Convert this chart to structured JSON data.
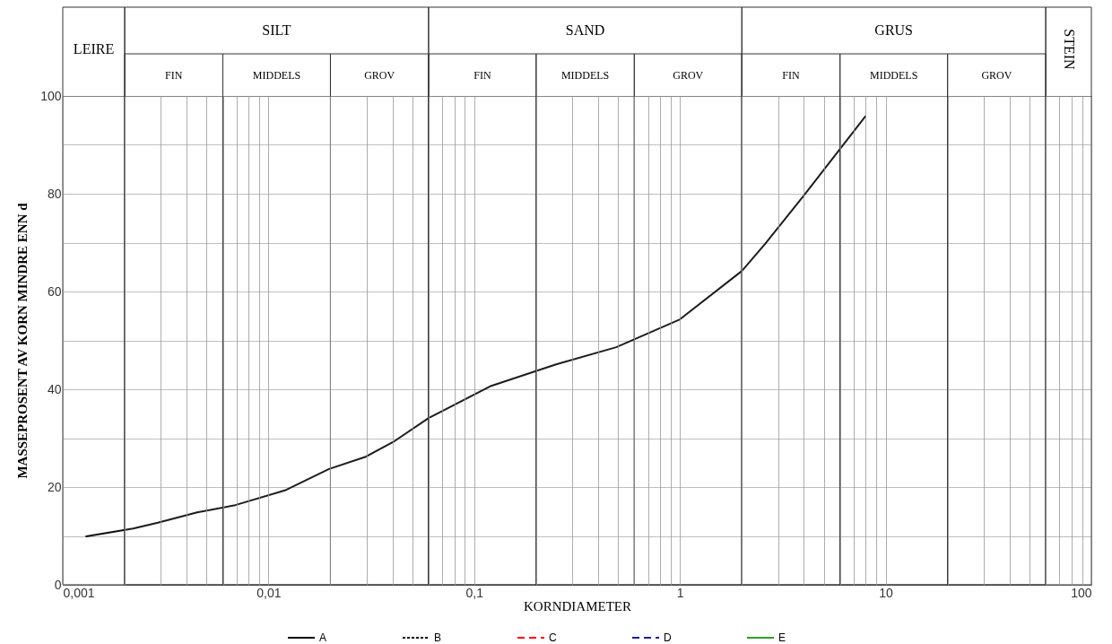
{
  "chart_data": {
    "type": "line",
    "xlabel": "KORNDIAMETER",
    "ylabel": "MASSEPROSENT AV KORN MINDRE ENN d",
    "log": "x",
    "grid": true,
    "legend": "bottom",
    "xlim": [
      0.001,
      100
    ],
    "ylim": [
      0,
      100
    ],
    "xticks": [
      {
        "value": 0.001,
        "label": "0,001"
      },
      {
        "value": 0.002,
        "label": null
      },
      {
        "value": 0.003,
        "label": null
      },
      {
        "value": 0.004,
        "label": null
      },
      {
        "value": 0.005,
        "label": null
      },
      {
        "value": 0.006,
        "label": null
      },
      {
        "value": 0.007,
        "label": null
      },
      {
        "value": 0.008,
        "label": null
      },
      {
        "value": 0.009,
        "label": null
      },
      {
        "value": 0.01,
        "label": "0,01"
      },
      {
        "value": 0.02,
        "label": null
      },
      {
        "value": 0.03,
        "label": null
      },
      {
        "value": 0.04,
        "label": null
      },
      {
        "value": 0.05,
        "label": null
      },
      {
        "value": 0.06,
        "label": null
      },
      {
        "value": 0.07,
        "label": null
      },
      {
        "value": 0.08,
        "label": null
      },
      {
        "value": 0.09,
        "label": null
      },
      {
        "value": 0.1,
        "label": "0,1"
      },
      {
        "value": 0.2,
        "label": null
      },
      {
        "value": 0.3,
        "label": null
      },
      {
        "value": 0.4,
        "label": null
      },
      {
        "value": 0.5,
        "label": null
      },
      {
        "value": 0.6,
        "label": null
      },
      {
        "value": 0.7,
        "label": null
      },
      {
        "value": 0.8,
        "label": null
      },
      {
        "value": 0.9,
        "label": null
      },
      1,
      {
        "value": 2,
        "label": null
      },
      {
        "value": 3,
        "label": null
      },
      {
        "value": 4,
        "label": null
      },
      {
        "value": 5,
        "label": null
      },
      {
        "value": 6,
        "label": null
      },
      {
        "value": 7,
        "label": null
      },
      {
        "value": 8,
        "label": null
      },
      {
        "value": 9,
        "label": null
      },
      10,
      {
        "value": 20,
        "label": null
      },
      {
        "value": 30,
        "label": null
      },
      {
        "value": 40,
        "label": null
      },
      {
        "value": 50,
        "label": null
      },
      {
        "value": 60,
        "label": null
      },
      {
        "value": 70,
        "label": null
      },
      {
        "value": 80,
        "label": null
      },
      {
        "value": 90,
        "label": null
      },
      100
    ],
    "yticks": [
      0,
      {
        "value": 10,
        "label": null
      },
      20,
      {
        "value": 30,
        "label": null
      },
      40,
      {
        "value": 50,
        "label": null
      },
      60,
      {
        "value": 70,
        "label": null
      },
      80,
      {
        "value": 90,
        "label": null
      },
      100
    ],
    "bands": [
      {
        "axis": "x",
        "from": 0.001,
        "to": 0.002,
        "label": "LEIRE"
      },
      {
        "axis": "x",
        "from": 0.002,
        "to": 0.06,
        "label": "SILT"
      },
      {
        "axis": "x",
        "from": 0.06,
        "to": 2,
        "label": "SAND"
      },
      {
        "axis": "x",
        "from": 2,
        "to": 60,
        "label": "GRUS"
      },
      {
        "axis": "x",
        "from": 60,
        "to": 100,
        "label": "STEIN"
      },
      {
        "axis": "x",
        "from": 0.002,
        "to": 0.006,
        "label": "FIN"
      },
      {
        "axis": "x",
        "from": 0.006,
        "to": 0.02,
        "label": "MIDDELS"
      },
      {
        "axis": "x",
        "from": 0.02,
        "to": 0.06,
        "label": "GROV"
      },
      {
        "axis": "x",
        "from": 0.06,
        "to": 0.2,
        "label": "FIN"
      },
      {
        "axis": "x",
        "from": 0.2,
        "to": 0.6,
        "label": "MIDDELS"
      },
      {
        "axis": "x",
        "from": 0.6,
        "to": 2,
        "label": "GROV"
      },
      {
        "axis": "x",
        "from": 2,
        "to": 6,
        "label": "FIN"
      },
      {
        "axis": "x",
        "from": 6,
        "to": 20,
        "label": "MIDDELS"
      },
      {
        "axis": "x",
        "from": 20,
        "to": 60,
        "label": "GROV"
      }
    ],
    "series": [
      {
        "name": "A",
        "color": "#000000",
        "line_style": "solid",
        "x": [
          0.0013,
          0.0022,
          0.0029,
          0.0045,
          0.0069,
          0.012,
          0.0197,
          0.0297,
          0.041,
          0.06,
          0.121,
          0.25,
          0.49,
          1.0,
          2.0,
          2.59,
          4.03,
          7.96
        ],
        "values": [
          9.9,
          11.5,
          12.7,
          14.8,
          16.3,
          19.3,
          23.7,
          26.2,
          29.4,
          34.1,
          40.7,
          45.1,
          48.6,
          54.3,
          64.2,
          69.7,
          79.8,
          95.8
        ]
      },
      {
        "name": "B",
        "color": "#000000",
        "line_style": "dotted"
      },
      {
        "name": "C",
        "color": "#ff0000",
        "line_style": "dashed"
      },
      {
        "name": "D",
        "color": "#1a1aa6",
        "line_style": "dashed"
      },
      {
        "name": "E",
        "color": "#2ca02c",
        "line_style": "solid"
      }
    ]
  }
}
